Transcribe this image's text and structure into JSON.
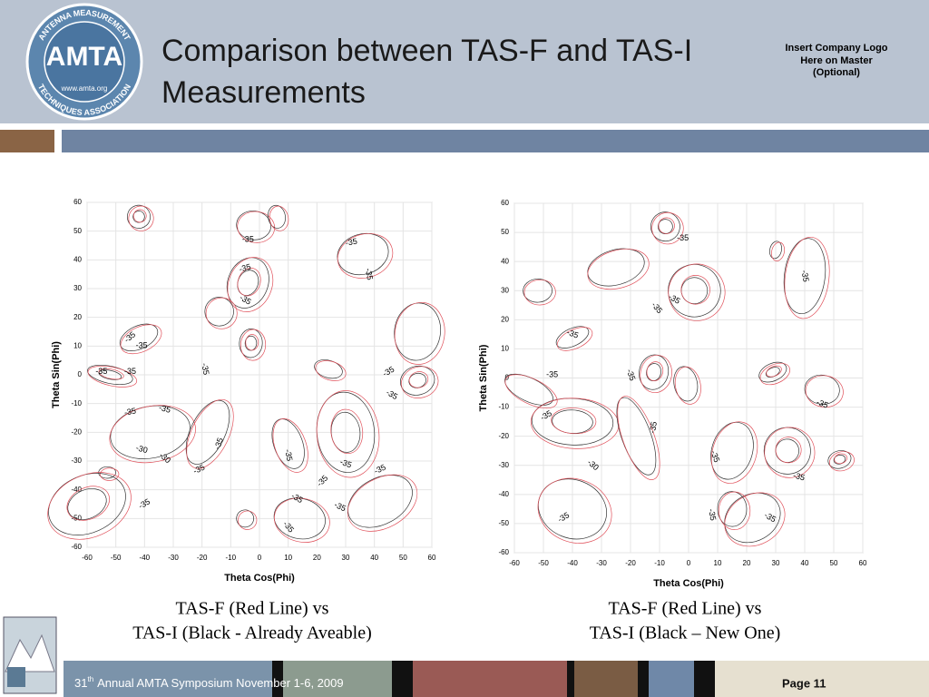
{
  "header": {
    "logo": {
      "ring_top": "ANTENNA MEASUREMENT",
      "name": "AMTA",
      "ring_bottom": "TECHNIQUES ASSOCIATION",
      "url": "www.amta.org"
    },
    "title_lines": [
      "Comparison between TAS-F and TAS-I",
      "Measurements"
    ],
    "logo_note": [
      "Insert Company Logo",
      "Here on Master",
      "(Optional)"
    ]
  },
  "plots": [
    {
      "x_label": "Theta Cos(Phi)",
      "y_label": "Theta Sin(Phi)",
      "x_ticks": [
        -60,
        -50,
        -40,
        -30,
        -20,
        -10,
        0,
        10,
        20,
        30,
        40,
        50,
        60
      ],
      "y_ticks": [
        60,
        50,
        40,
        30,
        20,
        10,
        0,
        -10,
        -20,
        -30,
        -40,
        -50,
        -60
      ],
      "contour_labels": [
        "-35",
        "-35",
        "-35",
        "-35",
        "-35",
        "-35",
        "-35",
        "-35",
        "-35",
        "-35",
        "-35",
        "-35",
        "-35",
        "-35",
        "-35",
        "-30",
        "-30",
        "-35",
        "-35",
        "-35",
        "-35",
        "-35",
        "-35",
        "-35",
        "-35",
        "-35"
      ],
      "caption": [
        "TAS-F (Red Line) vs",
        "TAS-I (Black - Already Aveable)"
      ]
    },
    {
      "x_label": "Theta Cos(Phi)",
      "y_label": "Theta Sin(Phi)",
      "x_ticks": [
        -60,
        -50,
        -40,
        -30,
        -20,
        -10,
        0,
        10,
        20,
        30,
        40,
        50,
        60
      ],
      "y_ticks": [
        60,
        50,
        40,
        30,
        20,
        10,
        0,
        -10,
        -20,
        -30,
        -40,
        -50,
        -60
      ],
      "contour_labels": [
        "-35",
        "-35",
        "-35",
        "-35",
        "-35",
        "-35",
        "-35",
        "-35",
        "-35",
        "-35",
        "-30",
        "-35",
        "-35",
        "-35",
        "-35",
        "-35"
      ],
      "caption": [
        "TAS-F (Red Line) vs",
        "TAS-I (Black – New One)"
      ]
    }
  ],
  "footer": {
    "number": "31",
    "suffix": "th",
    "text": "Annual AMTA Symposium November 1-6, 2009",
    "page": "Page 11"
  }
}
